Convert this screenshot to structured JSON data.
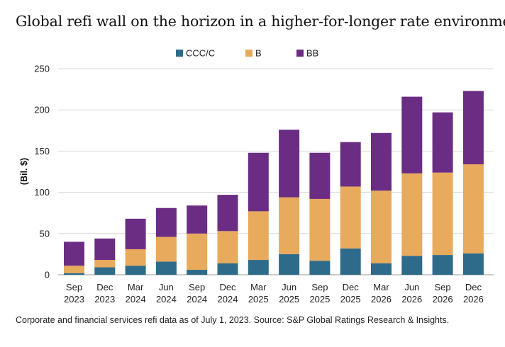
{
  "title": "Global refi wall on the horizon in a higher-for-longer rate environment",
  "footnote": "Corporate and financial services refi data as of July 1, 2023. Source: S&P Global Ratings Research & Insights.",
  "chart_data": {
    "type": "bar",
    "stacked": true,
    "categories": [
      [
        "Sep",
        "2023"
      ],
      [
        "Dec",
        "2023"
      ],
      [
        "Mar",
        "2024"
      ],
      [
        "Jun",
        "2024"
      ],
      [
        "Sep",
        "2024"
      ],
      [
        "Dec",
        "2024"
      ],
      [
        "Mar",
        "2025"
      ],
      [
        "Jun",
        "2025"
      ],
      [
        "Sep",
        "2025"
      ],
      [
        "Dec",
        "2025"
      ],
      [
        "Mar",
        "2026"
      ],
      [
        "Jun",
        "2026"
      ],
      [
        "Sep",
        "2026"
      ],
      [
        "Dec",
        "2026"
      ]
    ],
    "series": [
      {
        "name": "CCC/C",
        "color": "#2e6b8a",
        "values": [
          2,
          9,
          11,
          16,
          6,
          14,
          18,
          25,
          17,
          32,
          14,
          23,
          24,
          26
        ]
      },
      {
        "name": "B",
        "color": "#e8aa5c",
        "values": [
          9,
          9,
          20,
          30,
          44,
          39,
          59,
          69,
          75,
          75,
          88,
          100,
          100,
          108
        ]
      },
      {
        "name": "BB",
        "color": "#6b2d83",
        "values": [
          29,
          26,
          37,
          35,
          34,
          44,
          71,
          82,
          56,
          54,
          70,
          93,
          73,
          89
        ]
      }
    ],
    "ylabel": "(Bil. $)",
    "ylim": [
      0,
      250
    ],
    "yticks": [
      0,
      50,
      100,
      150,
      200,
      250
    ],
    "grid": true,
    "legend": "top-center"
  }
}
